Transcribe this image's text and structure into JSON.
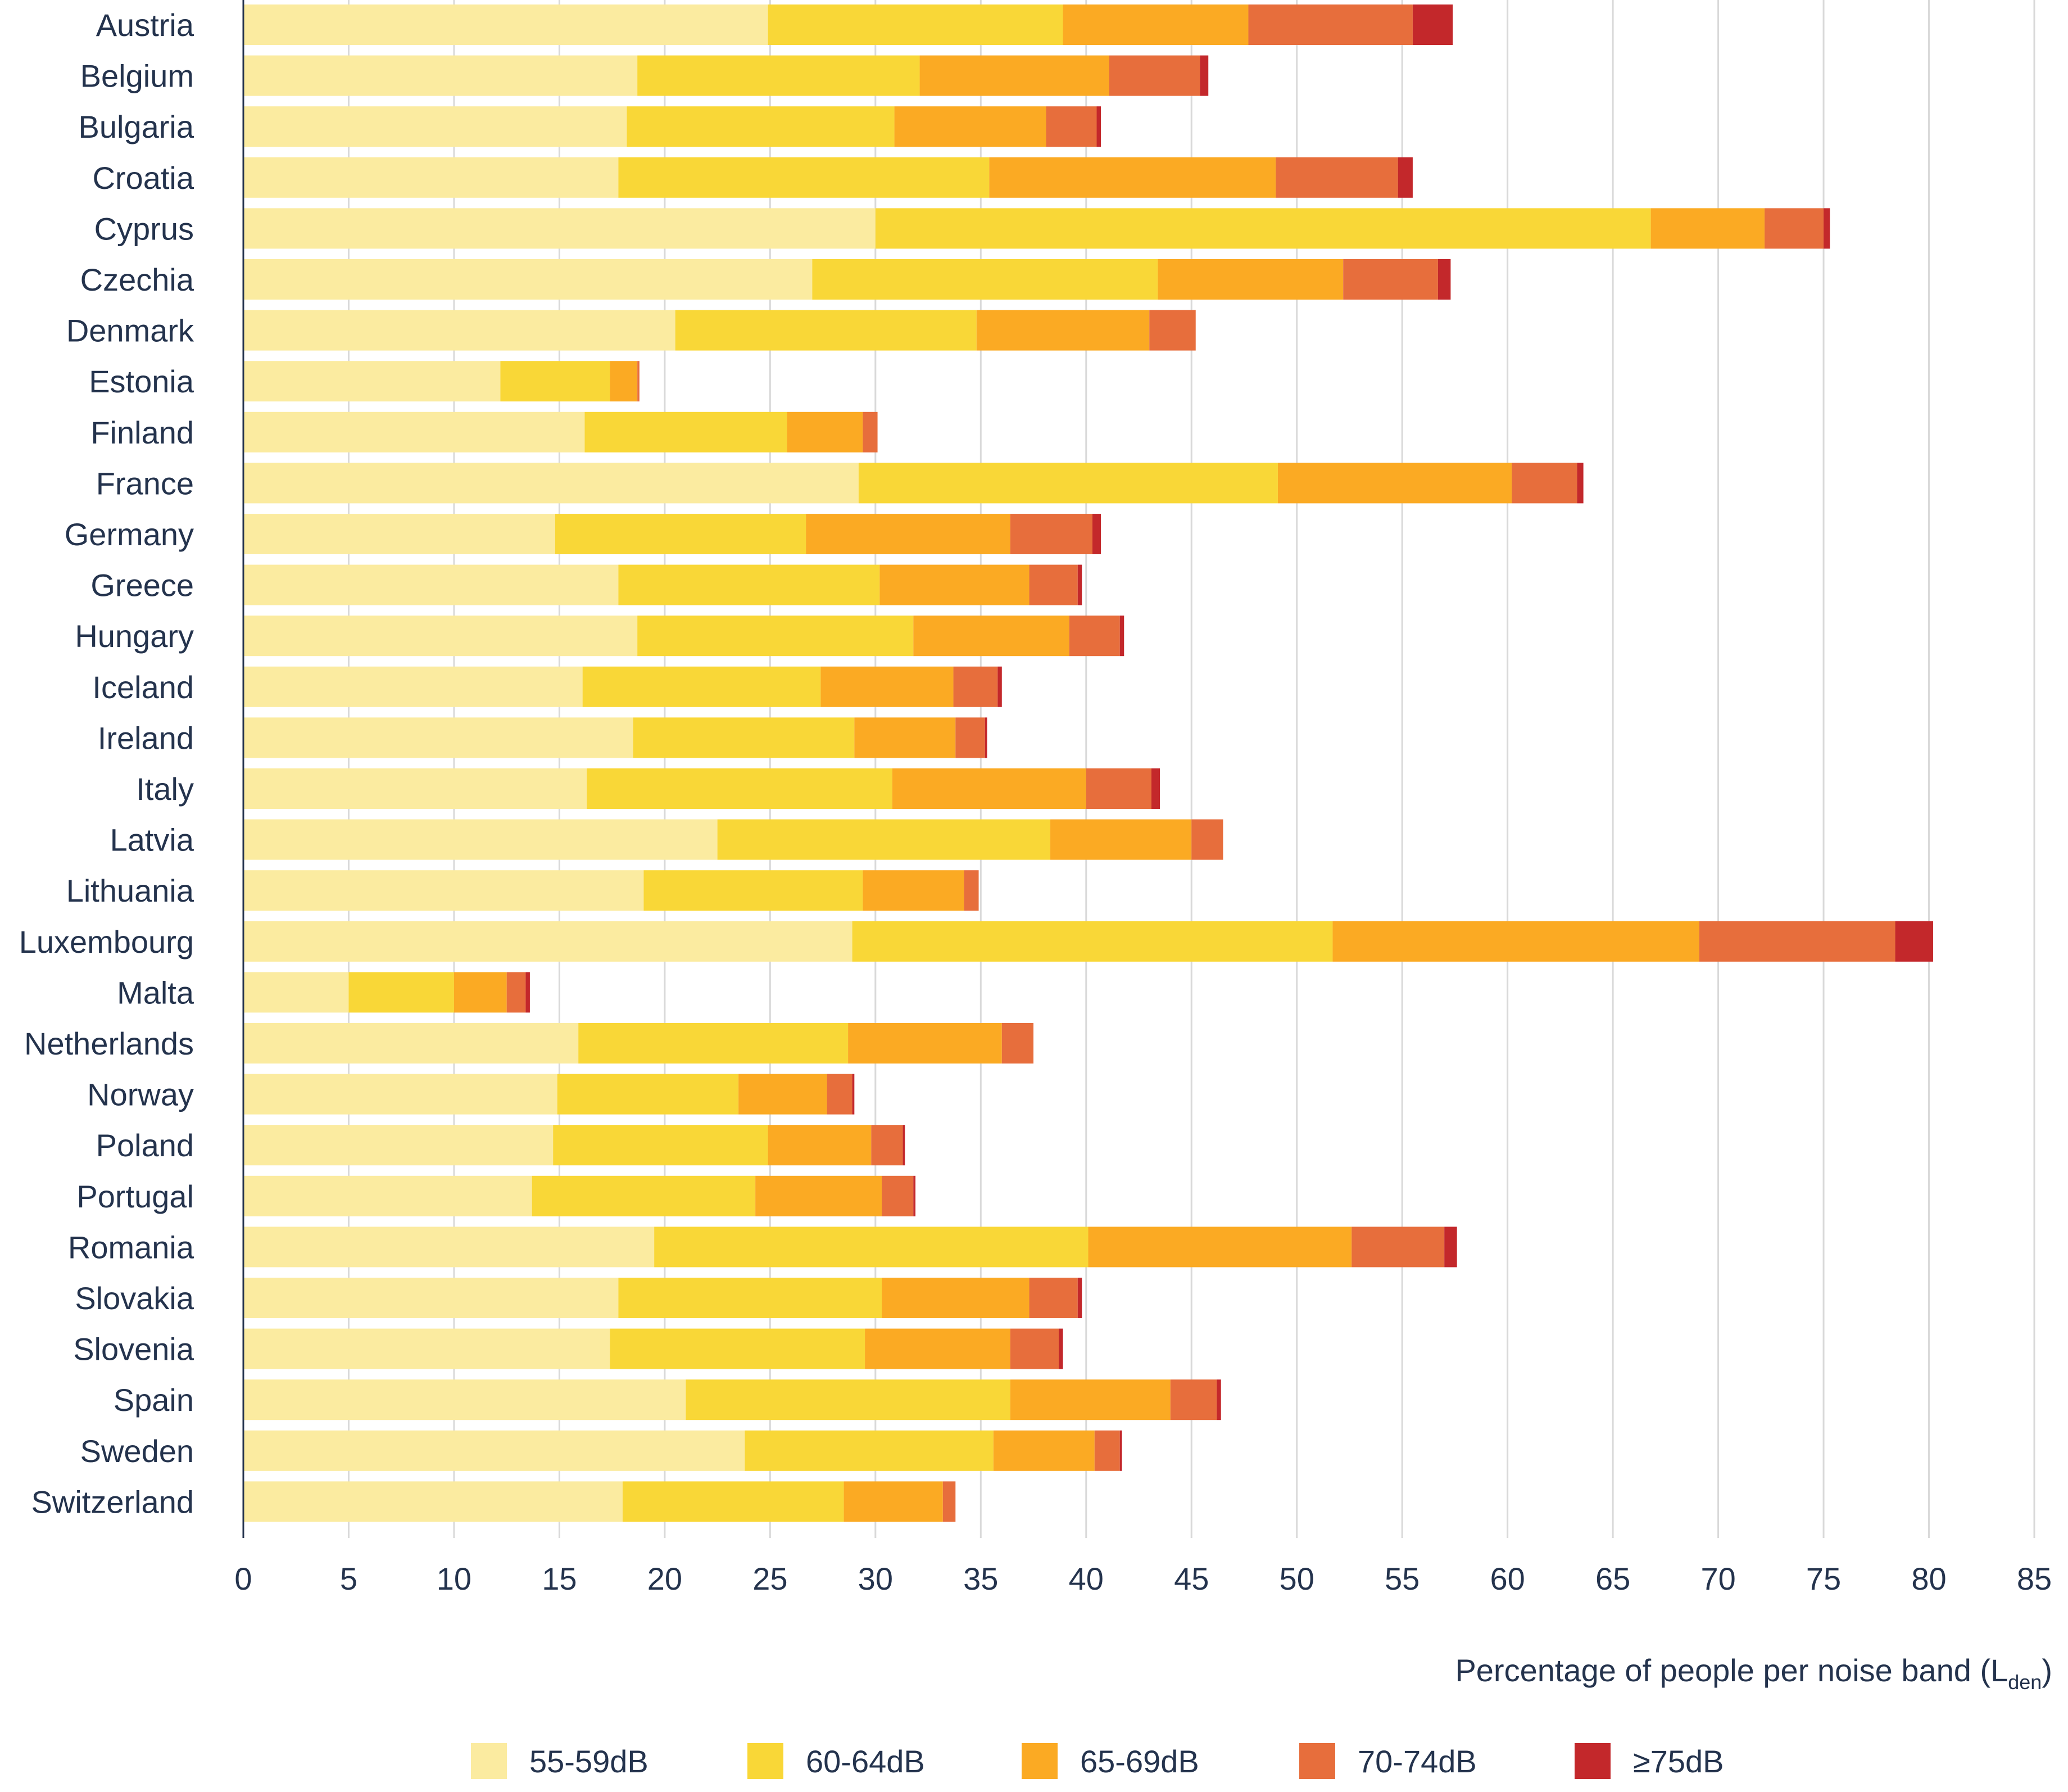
{
  "chart_data": {
    "type": "bar",
    "orientation": "horizontal",
    "stacked": true,
    "title": "",
    "xlabel": "Percentage of people per noise band (L",
    "xlabel_subscript": "den",
    "xlabel_suffix": ")",
    "ylabel": "",
    "xlim": [
      0,
      85
    ],
    "xticks": [
      "0",
      "5",
      "10",
      "15",
      "20",
      "25",
      "30",
      "35",
      "40",
      "45",
      "50",
      "55",
      "60",
      "65",
      "70",
      "75",
      "80",
      "85"
    ],
    "grid": "vertical",
    "legend_position": "bottom",
    "categories": [
      "Austria",
      "Belgium",
      "Bulgaria",
      "Croatia",
      "Cyprus",
      "Czechia",
      "Denmark",
      "Estonia",
      "Finland",
      "France",
      "Germany",
      "Greece",
      "Hungary",
      "Iceland",
      "Ireland",
      "Italy",
      "Latvia",
      "Lithuania",
      "Luxembourg",
      "Malta",
      "Netherlands",
      "Norway",
      "Poland",
      "Portugal",
      "Romania",
      "Slovakia",
      "Slovenia",
      "Spain",
      "Sweden",
      "Switzerland"
    ],
    "series": [
      {
        "name": "55-59dB",
        "color": "#fbeba0",
        "values": [
          24.9,
          18.7,
          18.2,
          17.8,
          30.0,
          27.0,
          20.5,
          12.2,
          16.2,
          29.2,
          14.8,
          17.8,
          18.7,
          16.1,
          18.5,
          16.3,
          22.5,
          19.0,
          28.9,
          5.0,
          15.9,
          14.9,
          14.7,
          13.7,
          19.5,
          17.8,
          17.4,
          21.0,
          23.8,
          18.0
        ]
      },
      {
        "name": "60-64dB",
        "color": "#f9d737",
        "values": [
          14.0,
          13.4,
          12.7,
          17.6,
          36.8,
          16.4,
          14.3,
          5.2,
          9.6,
          19.9,
          11.9,
          12.4,
          13.1,
          11.3,
          10.5,
          14.5,
          15.8,
          10.4,
          22.8,
          5.0,
          12.8,
          8.6,
          10.2,
          10.6,
          20.6,
          12.5,
          12.1,
          15.4,
          11.8,
          10.5
        ]
      },
      {
        "name": "65-69dB",
        "color": "#fbaa23",
        "values": [
          8.8,
          9.0,
          7.2,
          13.6,
          5.4,
          8.8,
          8.2,
          1.3,
          3.6,
          11.1,
          9.7,
          7.1,
          7.4,
          6.3,
          4.8,
          9.2,
          6.7,
          4.8,
          17.4,
          2.5,
          7.3,
          4.2,
          4.9,
          6.0,
          12.5,
          7.0,
          6.9,
          7.6,
          4.8,
          4.7
        ]
      },
      {
        "name": "70-74dB",
        "color": "#e76e3c",
        "values": [
          7.8,
          4.3,
          2.4,
          5.8,
          2.8,
          4.5,
          2.2,
          0.1,
          0.7,
          3.1,
          3.9,
          2.3,
          2.4,
          2.1,
          1.4,
          3.1,
          1.5,
          0.7,
          9.3,
          0.9,
          1.5,
          1.2,
          1.5,
          1.5,
          4.4,
          2.3,
          2.3,
          2.2,
          1.2,
          0.6
        ]
      },
      {
        "name": "≥75dB",
        "color": "#c3282b",
        "values": [
          1.9,
          0.4,
          0.2,
          0.7,
          0.3,
          0.6,
          0.0,
          0.0,
          0.0,
          0.3,
          0.4,
          0.2,
          0.2,
          0.2,
          0.1,
          0.4,
          0.0,
          0.0,
          1.8,
          0.2,
          0.0,
          0.1,
          0.1,
          0.1,
          0.6,
          0.2,
          0.2,
          0.2,
          0.1,
          0.0
        ]
      }
    ]
  }
}
